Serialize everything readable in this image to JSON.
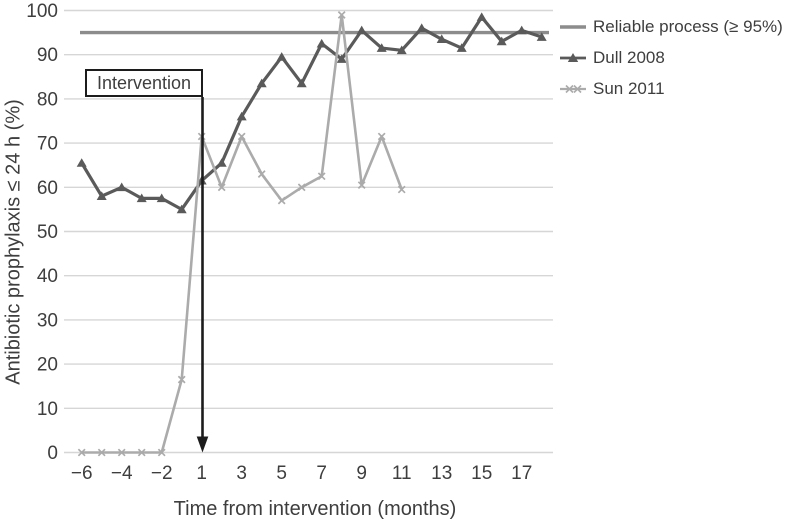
{
  "figure": {
    "background_color": "#ffffff",
    "text_color": "#3e3e3e",
    "grid_color": "#d6d6d6",
    "annotation_color": "#1c1c1c"
  },
  "chart_data": {
    "type": "line",
    "title": "",
    "xlabel": "Time from intervention (months)",
    "ylabel": "Antibiotic prophylaxis ≤ 24 h (%)",
    "ylim": [
      0,
      100
    ],
    "grid": "horizontal",
    "legend_position": "outside-top-right",
    "x_categories": [
      -6,
      -5,
      -4,
      -3,
      -2,
      -1,
      1,
      2,
      3,
      4,
      5,
      6,
      7,
      8,
      9,
      10,
      11,
      12,
      13,
      14,
      15,
      16,
      17,
      18
    ],
    "x_ticks": [
      -6,
      -4,
      -2,
      1,
      3,
      5,
      7,
      9,
      11,
      13,
      15,
      17
    ],
    "x_tick_labels": [
      "−6",
      "−4",
      "−2",
      "1",
      "3",
      "5",
      "7",
      "9",
      "11",
      "13",
      "15",
      "17"
    ],
    "y_ticks": [
      0,
      10,
      20,
      30,
      40,
      50,
      60,
      70,
      80,
      90,
      100
    ],
    "y_tick_labels": [
      "0",
      "10",
      "20",
      "30",
      "40",
      "50",
      "60",
      "70",
      "80",
      "90",
      "100"
    ],
    "annotation": {
      "label": "Intervention",
      "arrow_points_to_month": 1,
      "arrow_tip_value": 0
    },
    "series": [
      {
        "name": "Reliable process (≥ 95%)",
        "type": "reference-line",
        "value": 95,
        "color": "#8c8c8c",
        "line_width": 3.4
      },
      {
        "name": "Dull 2008",
        "type": "line",
        "marker": "triangle",
        "color": "#5a5a5a",
        "line_width": 3.2,
        "x": [
          -6,
          -5,
          -4,
          -3,
          -2,
          -1,
          1,
          2,
          3,
          4,
          5,
          6,
          7,
          8,
          9,
          10,
          11,
          12,
          13,
          14,
          15,
          16,
          17,
          18
        ],
        "values": [
          65.5,
          58,
          60,
          57.5,
          57.5,
          55,
          61.5,
          65.5,
          76,
          83.5,
          89.5,
          83.5,
          92.5,
          89,
          95.5,
          91.5,
          91,
          96,
          93.5,
          91.5,
          98.5,
          93,
          95.5,
          94
        ]
      },
      {
        "name": "Sun 2011",
        "type": "line",
        "marker": "x",
        "color": "#ababab",
        "line_width": 2.6,
        "x": [
          -6,
          -5,
          -4,
          -3,
          -2,
          -1,
          1,
          2,
          3,
          4,
          5,
          6,
          7,
          8,
          9,
          10,
          11
        ],
        "values": [
          0,
          0,
          0,
          0,
          0,
          16.5,
          71.5,
          60,
          71.5,
          63,
          57,
          60,
          62.5,
          99,
          60.5,
          71.5,
          59.5
        ]
      }
    ]
  }
}
